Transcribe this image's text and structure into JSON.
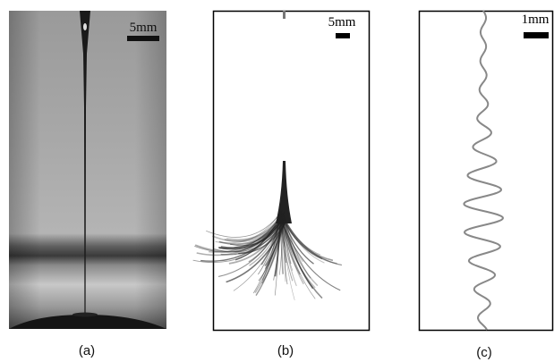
{
  "panels": [
    {
      "scale_label": "5mm",
      "caption": "(a)"
    },
    {
      "scale_label": "5mm",
      "caption": "(b)"
    },
    {
      "scale_label": "1mm",
      "caption": "(c)"
    }
  ]
}
